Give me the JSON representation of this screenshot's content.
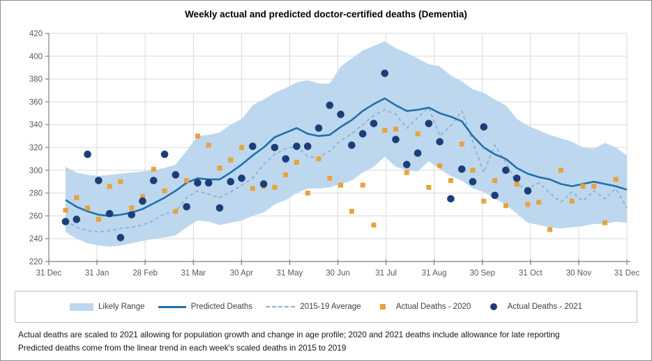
{
  "figure_title": "Weekly actual and predicted doctor-certified deaths (Dementia)",
  "legend": {
    "items": [
      {
        "label": "Likely Range",
        "marker": "band-swatch"
      },
      {
        "label": "Predicted Deaths",
        "marker": "solid-line"
      },
      {
        "label": "2015-19 Average",
        "marker": "dashed-line"
      },
      {
        "label": "Actual Deaths - 2020",
        "marker": "orange-square"
      },
      {
        "label": "Actual Deaths - 2021",
        "marker": "navy-circle"
      }
    ]
  },
  "footnotes": [
    "Actual deaths are scaled to 2021 allowing for population growth and change in age profile; 2020 and 2021 deaths include allowance for late reporting",
    "Predicted deaths come from the linear trend in each week's scaled deaths in 2015 to 2019"
  ],
  "colors": {
    "band": "#bdd7ee",
    "predicted": "#1f6fae",
    "average": "#8fafd1",
    "actual2020": "#e9a23b",
    "actual2021": "#1c3e78",
    "gridline": "#d9d9d9",
    "axis": "#7f7f7f",
    "axisText": "#595959"
  },
  "chart_data": {
    "type": "line",
    "title": "Weekly actual and predicted doctor-certified deaths (Dementia)",
    "xlabel": "",
    "ylabel": "",
    "ylim": [
      220,
      420
    ],
    "grid": true,
    "legend_position": "bottom",
    "weeks": 52,
    "x_tick_labels": [
      "31 Dec",
      "31 Jan",
      "28 Feb",
      "31 Mar",
      "30 Apr",
      "31 May",
      "30 Jun",
      "31 Jul",
      "31 Aug",
      "30 Sep",
      "31 Oct",
      "30 Nov",
      "31 Dec"
    ],
    "y_ticks": [
      220,
      240,
      260,
      280,
      300,
      320,
      340,
      360,
      380,
      400,
      420
    ],
    "series": [
      {
        "name": "Likely Range",
        "type": "band",
        "upper": [
          303,
          298,
          296,
          295,
          296,
          297,
          298,
          299,
          300,
          302,
          305,
          317,
          330,
          331,
          333,
          340,
          345,
          357,
          362,
          368,
          372,
          377,
          379,
          376,
          376,
          391,
          398,
          405,
          409,
          413,
          407,
          403,
          398,
          393,
          391,
          383,
          378,
          371,
          368,
          362,
          357,
          345,
          339,
          335,
          331,
          328,
          325,
          320,
          319,
          324,
          320,
          313
        ],
        "lower": [
          246,
          240,
          236,
          234,
          233,
          234,
          236,
          238,
          240,
          241,
          243,
          250,
          256,
          255,
          252,
          254,
          256,
          260,
          263,
          270,
          274,
          280,
          284,
          284,
          285,
          288,
          291,
          298,
          303,
          312,
          303,
          300,
          299,
          308,
          301,
          295,
          291,
          284,
          281,
          275,
          270,
          262,
          254,
          252,
          250,
          249,
          250,
          251,
          253,
          253,
          255,
          254
        ]
      },
      {
        "name": "Predicted Deaths",
        "type": "line",
        "values": [
          274,
          268,
          264,
          261,
          260,
          261,
          263,
          266,
          271,
          276,
          282,
          289,
          293,
          292,
          292,
          298,
          305,
          313,
          320,
          329,
          333,
          337,
          332,
          330,
          331,
          338,
          344,
          352,
          358,
          363,
          357,
          352,
          353,
          355,
          350,
          347,
          343,
          330,
          320,
          314,
          310,
          302,
          297,
          294,
          292,
          288,
          286,
          288,
          290,
          288,
          286,
          283
        ]
      },
      {
        "name": "2015-19 Average",
        "type": "dashed-line",
        "values": [
          256,
          250,
          247,
          246,
          247,
          249,
          250,
          252,
          256,
          262,
          264,
          276,
          282,
          279,
          276,
          281,
          287,
          293,
          305,
          314,
          319,
          321,
          312,
          311,
          317,
          326,
          332,
          340,
          348,
          353,
          349,
          337,
          346,
          355,
          330,
          339,
          352,
          325,
          298,
          322,
          307,
          287,
          284,
          289,
          280,
          272,
          281,
          273,
          282,
          275,
          284,
          267
        ]
      },
      {
        "name": "Actual Deaths - 2020",
        "type": "scatter-square",
        "values": [
          265,
          276,
          267,
          257,
          286,
          290,
          267,
          277,
          301,
          282,
          264,
          291,
          330,
          322,
          302,
          309,
          320,
          284,
          286,
          285,
          296,
          307,
          280,
          310,
          293,
          287,
          264,
          287,
          252,
          335,
          336,
          298,
          332,
          285,
          304,
          291,
          323,
          300,
          273,
          291,
          269,
          288,
          270,
          272,
          248,
          300,
          273,
          286,
          286,
          254,
          292,
          null
        ]
      },
      {
        "name": "Actual Deaths - 2021",
        "type": "scatter-circle",
        "values": [
          255,
          257,
          314,
          291,
          262,
          241,
          261,
          273,
          291,
          314,
          296,
          268,
          289,
          289,
          267,
          290,
          293,
          321,
          288,
          320,
          310,
          321,
          321,
          337,
          357,
          349,
          322,
          332,
          341,
          385,
          327,
          305,
          315,
          341,
          325,
          275,
          301,
          290,
          338,
          278,
          300,
          293,
          282,
          null,
          null,
          null,
          null,
          null,
          null,
          null,
          null,
          null
        ]
      }
    ]
  }
}
